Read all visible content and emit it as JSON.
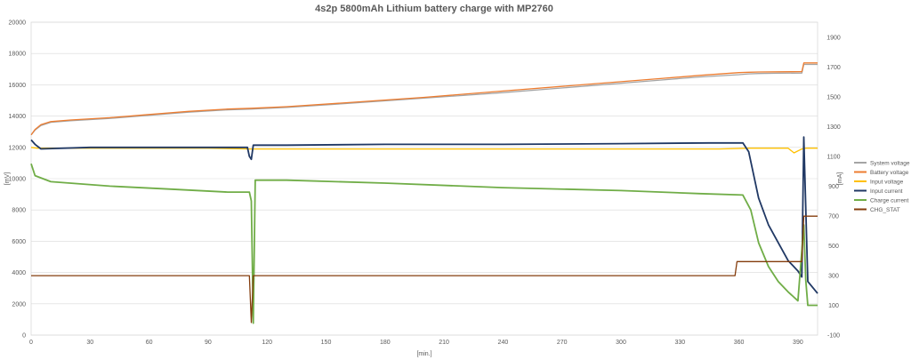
{
  "chart_data": {
    "type": "line",
    "title": "4s2p 5800mAh Lithium battery charge with MP2760",
    "xlabel": "[min.]",
    "ylabel_left": "[mV]",
    "ylabel_right": "[mA]",
    "xlim": [
      0,
      400
    ],
    "x_ticks": [
      0,
      30,
      60,
      90,
      120,
      150,
      180,
      210,
      240,
      270,
      300,
      330,
      360,
      390
    ],
    "ylim_left": [
      0,
      20000
    ],
    "y_ticks_left": [
      0,
      2000,
      4000,
      6000,
      8000,
      10000,
      12000,
      14000,
      16000,
      18000,
      20000
    ],
    "ylim_right": [
      -100,
      2000
    ],
    "y_ticks_right": [
      -100,
      100,
      300,
      500,
      700,
      900,
      1100,
      1300,
      1500,
      1700,
      1900
    ],
    "grid": "horizontal",
    "legend_position": "right",
    "series": [
      {
        "name": "System voltage",
        "axis": "left",
        "color": "#a5a5a5",
        "x": [
          0,
          2,
          5,
          10,
          20,
          40,
          60,
          80,
          100,
          112,
          130,
          160,
          200,
          240,
          280,
          320,
          340,
          360,
          365,
          370,
          380,
          392,
          393,
          395,
          400
        ],
        "y": [
          12800,
          13100,
          13400,
          13600,
          13700,
          13850,
          14050,
          14250,
          14400,
          14450,
          14550,
          14800,
          15150,
          15500,
          15900,
          16300,
          16500,
          16650,
          16700,
          16720,
          16740,
          16750,
          17300,
          17300,
          17300
        ]
      },
      {
        "name": "Battery voltage",
        "axis": "left",
        "color": "#ed7d31",
        "x": [
          0,
          2,
          5,
          10,
          20,
          40,
          60,
          80,
          100,
          112,
          130,
          160,
          200,
          240,
          280,
          320,
          340,
          360,
          365,
          370,
          380,
          392,
          393,
          395,
          400
        ],
        "y": [
          12800,
          13150,
          13450,
          13650,
          13750,
          13900,
          14100,
          14300,
          14450,
          14500,
          14600,
          14850,
          15200,
          15600,
          16000,
          16400,
          16600,
          16780,
          16800,
          16820,
          16830,
          16840,
          17400,
          17400,
          17400
        ]
      },
      {
        "name": "Input voltage",
        "axis": "left",
        "color": "#ffc000",
        "x": [
          0,
          3,
          30,
          60,
          90,
          112,
          150,
          200,
          250,
          300,
          350,
          365,
          370,
          380,
          385,
          388,
          392,
          394,
          400
        ],
        "y": [
          12000,
          11950,
          11950,
          11950,
          11950,
          11900,
          11900,
          11900,
          11900,
          11900,
          11900,
          11950,
          11950,
          11950,
          11950,
          11650,
          11900,
          11950,
          11950
        ]
      },
      {
        "name": "Input current",
        "axis": "right",
        "color": "#203864",
        "x": [
          0,
          2,
          5,
          30,
          60,
          90,
          110,
          111,
          112,
          113,
          130,
          180,
          240,
          300,
          345,
          362,
          365,
          370,
          375,
          380,
          385,
          390,
          392,
          393,
          395,
          400
        ],
        "y": [
          1210,
          1180,
          1150,
          1160,
          1160,
          1160,
          1160,
          1100,
          1080,
          1175,
          1175,
          1180,
          1180,
          1185,
          1190,
          1190,
          1130,
          820,
          640,
          520,
          400,
          330,
          290,
          1230,
          260,
          180
        ]
      },
      {
        "name": "Charge current",
        "axis": "right",
        "color": "#70ad47",
        "x": [
          0,
          2,
          10,
          40,
          70,
          100,
          111,
          112,
          113,
          114,
          130,
          180,
          240,
          300,
          340,
          362,
          366,
          370,
          375,
          380,
          385,
          390,
          393,
          394,
          395,
          400
        ],
        "y": [
          1050,
          970,
          930,
          900,
          880,
          860,
          860,
          800,
          -20,
          940,
          940,
          920,
          890,
          870,
          850,
          840,
          740,
          520,
          360,
          260,
          190,
          130,
          640,
          270,
          100,
          100
        ]
      },
      {
        "name": "CHG_STAT",
        "axis": "left",
        "color": "#843c0c",
        "x": [
          0,
          111,
          112,
          113,
          358,
          359,
          392,
          393,
          400
        ],
        "y": [
          3800,
          3800,
          800,
          3800,
          3800,
          4700,
          4700,
          7600,
          7600
        ]
      }
    ]
  }
}
